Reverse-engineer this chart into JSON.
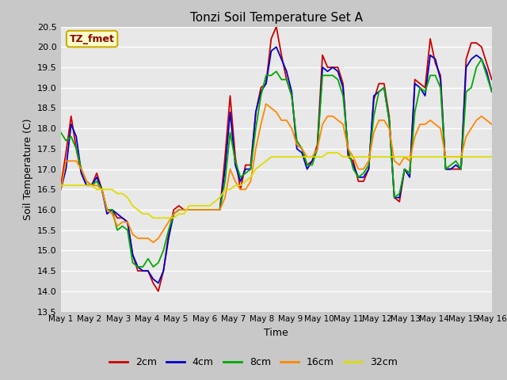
{
  "title": "Tonzi Soil Temperature Set A",
  "xlabel": "Time",
  "ylabel": "Soil Temperature (C)",
  "annotation": "TZ_fmet",
  "ylim": [
    13.5,
    20.5
  ],
  "series": {
    "2cm": {
      "color": "#cc0000",
      "label": "2cm"
    },
    "4cm": {
      "color": "#0000cc",
      "label": "4cm"
    },
    "8cm": {
      "color": "#00aa00",
      "label": "8cm"
    },
    "16cm": {
      "color": "#ff8800",
      "label": "16cm"
    },
    "32cm": {
      "color": "#dddd00",
      "label": "32cm"
    }
  },
  "x_tick_labels": [
    "May 1",
    "May 2",
    "May 3",
    "May 4",
    "May 5",
    "May 6",
    "May 7",
    "May 8",
    "May 9",
    "May 10",
    "May 11",
    "May 12",
    "May 13",
    "May 14",
    "May 15",
    "May 16"
  ],
  "data_2cm": [
    16.6,
    17.4,
    18.3,
    17.5,
    16.9,
    16.6,
    16.6,
    16.9,
    16.5,
    16.0,
    16.0,
    15.8,
    15.8,
    15.7,
    14.9,
    14.5,
    14.5,
    14.5,
    14.2,
    14.0,
    14.5,
    15.4,
    16.0,
    16.1,
    16.0,
    16.0,
    16.0,
    16.0,
    16.0,
    16.0,
    16.0,
    16.0,
    17.3,
    18.8,
    17.3,
    16.5,
    17.1,
    17.1,
    18.4,
    19.0,
    19.1,
    20.2,
    20.5,
    19.8,
    19.2,
    18.8,
    17.6,
    17.5,
    17.1,
    17.2,
    17.6,
    19.8,
    19.5,
    19.5,
    19.5,
    19.1,
    17.3,
    17.2,
    16.7,
    16.7,
    17.0,
    18.7,
    19.1,
    19.1,
    18.3,
    16.3,
    16.2,
    17.0,
    16.9,
    19.2,
    19.1,
    19.0,
    20.2,
    19.6,
    19.3,
    17.0,
    17.0,
    17.0,
    17.0,
    19.7,
    20.1,
    20.1,
    20.0,
    19.6,
    19.2
  ],
  "data_4cm": [
    16.5,
    17.0,
    18.1,
    17.8,
    16.9,
    16.6,
    16.6,
    16.8,
    16.5,
    15.9,
    16.0,
    15.9,
    15.8,
    15.7,
    14.9,
    14.6,
    14.5,
    14.5,
    14.3,
    14.2,
    14.5,
    15.3,
    15.9,
    16.0,
    16.0,
    16.0,
    16.0,
    16.0,
    16.0,
    16.0,
    16.0,
    16.0,
    17.0,
    18.4,
    17.1,
    16.7,
    17.0,
    17.0,
    18.4,
    18.9,
    19.1,
    19.9,
    20.0,
    19.7,
    19.4,
    18.9,
    17.5,
    17.4,
    17.0,
    17.2,
    17.5,
    19.5,
    19.4,
    19.5,
    19.4,
    19.0,
    17.4,
    17.1,
    16.8,
    16.8,
    17.0,
    18.8,
    18.9,
    19.0,
    18.2,
    16.3,
    16.3,
    17.0,
    16.8,
    19.1,
    19.0,
    18.8,
    19.8,
    19.7,
    19.2,
    17.0,
    17.0,
    17.1,
    17.0,
    19.5,
    19.7,
    19.8,
    19.7,
    19.4,
    18.9
  ],
  "data_8cm": [
    17.9,
    17.7,
    17.8,
    17.5,
    17.0,
    16.7,
    16.6,
    16.7,
    16.5,
    16.0,
    16.0,
    15.5,
    15.6,
    15.5,
    14.7,
    14.6,
    14.6,
    14.8,
    14.6,
    14.7,
    15.0,
    15.5,
    15.9,
    16.0,
    16.0,
    16.0,
    16.0,
    16.0,
    16.0,
    16.0,
    16.0,
    16.0,
    16.7,
    17.9,
    17.2,
    16.8,
    16.9,
    17.0,
    18.0,
    18.8,
    19.3,
    19.3,
    19.4,
    19.2,
    19.2,
    18.8,
    17.7,
    17.5,
    17.1,
    17.1,
    17.5,
    19.3,
    19.3,
    19.3,
    19.2,
    18.8,
    17.5,
    17.0,
    16.8,
    16.9,
    17.1,
    18.3,
    18.9,
    19.0,
    18.2,
    16.3,
    16.4,
    17.0,
    16.9,
    18.4,
    19.0,
    18.9,
    19.3,
    19.3,
    19.0,
    17.0,
    17.1,
    17.2,
    17.0,
    18.9,
    19.0,
    19.5,
    19.7,
    19.3,
    18.9
  ],
  "data_16cm": [
    16.5,
    17.2,
    17.2,
    17.2,
    17.0,
    16.7,
    16.6,
    16.6,
    16.5,
    16.0,
    15.9,
    15.6,
    15.7,
    15.7,
    15.4,
    15.3,
    15.3,
    15.3,
    15.2,
    15.3,
    15.5,
    15.7,
    15.9,
    16.0,
    16.0,
    16.0,
    16.0,
    16.0,
    16.0,
    16.0,
    16.0,
    16.0,
    16.3,
    17.0,
    16.7,
    16.5,
    16.5,
    16.7,
    17.5,
    18.1,
    18.6,
    18.5,
    18.4,
    18.2,
    18.2,
    18.0,
    17.6,
    17.5,
    17.3,
    17.3,
    17.5,
    18.1,
    18.3,
    18.3,
    18.2,
    18.1,
    17.5,
    17.3,
    17.0,
    17.0,
    17.2,
    17.9,
    18.2,
    18.2,
    18.0,
    17.2,
    17.1,
    17.3,
    17.2,
    17.8,
    18.1,
    18.1,
    18.2,
    18.1,
    18.0,
    17.3,
    17.3,
    17.3,
    17.3,
    17.8,
    18.0,
    18.2,
    18.3,
    18.2,
    18.1
  ],
  "data_32cm": [
    16.6,
    16.6,
    16.6,
    16.6,
    16.6,
    16.6,
    16.6,
    16.5,
    16.5,
    16.5,
    16.5,
    16.4,
    16.4,
    16.3,
    16.1,
    16.0,
    15.9,
    15.9,
    15.8,
    15.8,
    15.8,
    15.8,
    15.8,
    15.9,
    15.9,
    16.1,
    16.1,
    16.1,
    16.1,
    16.1,
    16.2,
    16.3,
    16.5,
    16.5,
    16.6,
    16.6,
    16.7,
    16.8,
    17.0,
    17.1,
    17.2,
    17.3,
    17.3,
    17.3,
    17.3,
    17.3,
    17.3,
    17.3,
    17.3,
    17.3,
    17.3,
    17.3,
    17.4,
    17.4,
    17.4,
    17.3,
    17.3,
    17.3,
    17.3,
    17.3,
    17.3,
    17.3,
    17.3,
    17.3,
    17.3,
    17.3,
    17.3,
    17.3,
    17.3,
    17.3,
    17.3,
    17.3,
    17.3,
    17.3,
    17.3,
    17.3,
    17.3,
    17.3,
    17.3,
    17.3,
    17.3,
    17.3,
    17.3,
    17.3,
    17.3
  ]
}
